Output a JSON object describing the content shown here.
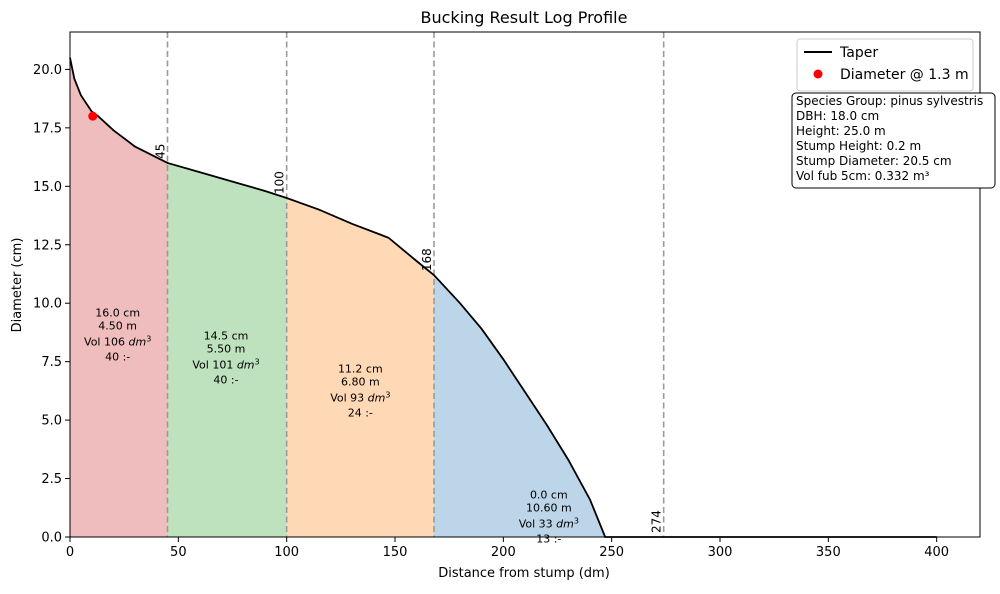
{
  "chart_data": {
    "type": "area",
    "title": "Bucking Result Log Profile",
    "xlabel": "Distance from stump (dm)",
    "ylabel": "Diameter (cm)",
    "xlim": [
      0,
      420
    ],
    "ylim": [
      0,
      21.6
    ],
    "xticks": [
      0,
      50,
      100,
      150,
      200,
      250,
      300,
      350,
      400
    ],
    "yticks": [
      0.0,
      2.5,
      5.0,
      7.5,
      10.0,
      12.5,
      15.0,
      17.5,
      20.0
    ],
    "legend_position": "top-right",
    "legend": [
      {
        "label": "Taper",
        "kind": "line",
        "color": "#000000"
      },
      {
        "label": "Diameter @ 1.3 m",
        "kind": "marker",
        "color": "#ff0000"
      }
    ],
    "taper_series": {
      "name": "Taper",
      "x": [
        0,
        2,
        5,
        10,
        13,
        20,
        30,
        45,
        60,
        75,
        90,
        100,
        115,
        130,
        147,
        160,
        168,
        180,
        190,
        200,
        210,
        220,
        230,
        240,
        247,
        250,
        300,
        350,
        400
      ],
      "y": [
        20.5,
        19.6,
        18.9,
        18.2,
        18.0,
        17.4,
        16.7,
        16.0,
        15.6,
        15.2,
        14.8,
        14.5,
        14.0,
        13.4,
        12.8,
        11.8,
        11.2,
        10.0,
        8.9,
        7.6,
        6.2,
        4.8,
        3.3,
        1.6,
        0.0,
        0.0,
        0.0,
        0.0,
        0.0
      ]
    },
    "dbh_point": {
      "x": 10.5,
      "y": 18.0
    },
    "cut_positions": [
      45,
      100,
      168,
      274
    ],
    "segments": [
      {
        "start": 0,
        "end": 45,
        "color": "#e07b7e",
        "label_x": 22,
        "label_y": 7.9,
        "lines": [
          "16.0 cm",
          "4.50 m",
          "Vol 106 dm3",
          "40 :-"
        ]
      },
      {
        "start": 45,
        "end": 100,
        "color": "#7ec57c",
        "label_x": 72,
        "label_y": 6.9,
        "lines": [
          "14.5 cm",
          "5.50 m",
          "Vol 101 dm3",
          "40 :-"
        ]
      },
      {
        "start": 100,
        "end": 168,
        "color": "#ffb26b",
        "label_x": 134,
        "label_y": 5.5,
        "lines": [
          "11.2 cm",
          "6.80 m",
          "Vol 93 dm3",
          "24 :-"
        ]
      },
      {
        "start": 168,
        "end": 274,
        "color": "#79acd2",
        "label_x": 221,
        "label_y": 0.1,
        "lines": [
          "0.0 cm",
          "10.60 m",
          "Vol 33 dm3",
          "13 :-"
        ]
      }
    ],
    "info_box": [
      "Species Group: pinus sylvestris",
      "DBH: 18.0 cm",
      "Height: 25.0 m",
      "Stump Height: 0.2 m",
      "Stump Diameter: 20.5 cm",
      "Vol fub 5cm: 0.332 m³"
    ]
  }
}
